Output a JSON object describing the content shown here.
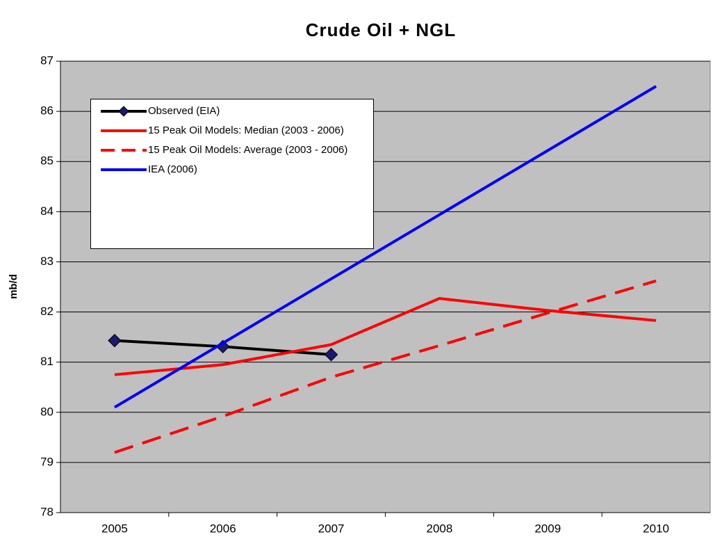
{
  "chart_data": {
    "type": "line",
    "title": "Crude Oil + NGL",
    "y_label": "mb/d",
    "categories": [
      "2005",
      "2006",
      "2007",
      "2008",
      "2009",
      "2010"
    ],
    "series": [
      {
        "name": "Observed (EIA)",
        "color": "#000000",
        "marker": "diamond",
        "marker_color": "#1a1a6e",
        "dashed": false,
        "values": [
          81.43,
          81.31,
          81.15,
          null,
          null,
          null
        ]
      },
      {
        "name": "15 Peak Oil Models: Median (2003 - 2006)",
        "color": "#ff0000",
        "dashed": false,
        "values": [
          80.75,
          80.95,
          81.35,
          82.27,
          82.03,
          81.83
        ]
      },
      {
        "name": "15 Peak Oil Models: Average (2003 - 2006)",
        "color": "#ff0000",
        "dashed": true,
        "values": [
          79.2,
          79.92,
          80.7,
          81.33,
          81.98,
          82.62
        ]
      },
      {
        "name": "IEA (2006)",
        "color": "#0000ff",
        "dashed": false,
        "values": [
          80.1,
          81.38,
          82.66,
          83.94,
          85.22,
          86.5
        ]
      }
    ],
    "ylim": [
      78,
      87
    ],
    "yticks": [
      78,
      79,
      80,
      81,
      82,
      83,
      84,
      85,
      86,
      87
    ],
    "grid": true,
    "plot_background": "#c0c0c0"
  }
}
